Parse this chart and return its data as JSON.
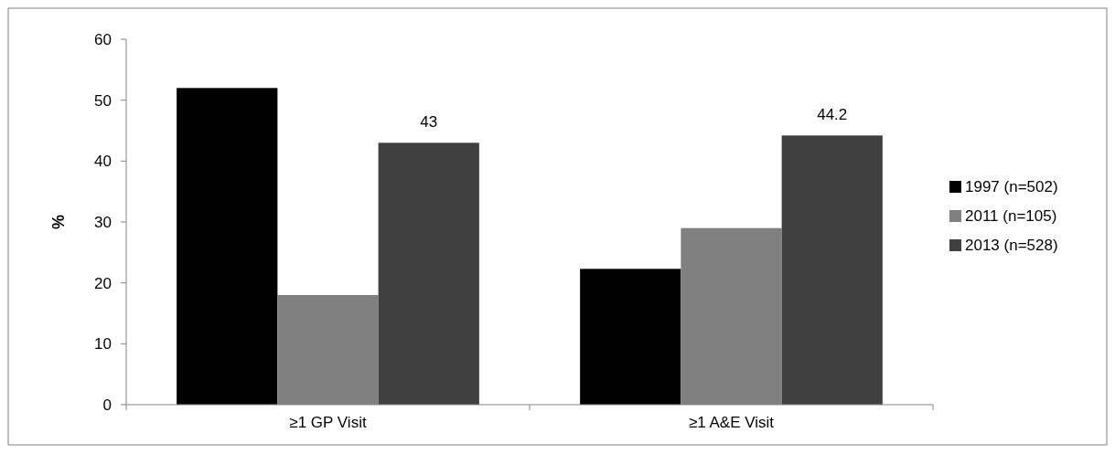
{
  "chart_data": {
    "type": "bar",
    "ylabel": "%",
    "categories": [
      "≥1 GP Visit",
      "≥1 A&E Visit"
    ],
    "series": [
      {
        "name": "1997 (n=502)",
        "color": "#000000",
        "values": [
          52,
          22.3
        ]
      },
      {
        "name": "2011 (n=105)",
        "color": "#808080",
        "values": [
          18,
          29
        ]
      },
      {
        "name": "2013 (n=528)",
        "color": "#404040",
        "values": [
          43,
          44.2
        ],
        "value_labels": [
          "43",
          "44.2"
        ]
      }
    ],
    "ylim": [
      0,
      60
    ],
    "yticks": [
      0,
      10,
      20,
      30,
      40,
      50,
      60
    ],
    "grid": false,
    "legend": "right"
  }
}
